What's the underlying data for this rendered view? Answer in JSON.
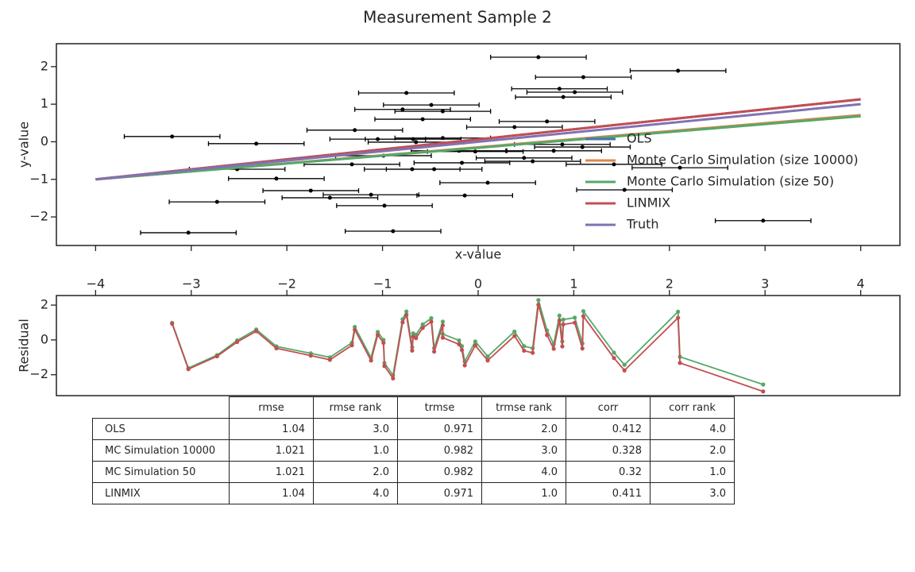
{
  "chart_data": [
    {
      "type": "errorbar",
      "title": "Measurement Sample 2",
      "xlabel": "x-value",
      "ylabel": "y-value",
      "xlim": [
        -4.41,
        4.41
      ],
      "ylim": [
        -2.76,
        2.61
      ],
      "yticks": [
        {
          "value": -2,
          "label": "−2"
        },
        {
          "value": -1,
          "label": "−1"
        },
        0,
        1,
        2
      ],
      "legend": "lower right",
      "points": {
        "color": "#000000",
        "xerr": 0.5,
        "x": [
          -3.2,
          -3.03,
          -2.73,
          -2.52,
          -2.32,
          -2.11,
          -1.75,
          -1.55,
          -1.32,
          -1.29,
          -1.12,
          -1.05,
          -0.99,
          -0.98,
          -0.89,
          -0.79,
          -0.75,
          -0.69,
          -0.68,
          -0.65,
          -0.58,
          -0.49,
          -0.46,
          -0.37,
          -0.37,
          -0.2,
          -0.17,
          -0.14,
          -0.03,
          0.1,
          0.38,
          0.48,
          0.57,
          0.63,
          0.72,
          0.79,
          0.85,
          0.88,
          0.89,
          1.01,
          1.09,
          1.1,
          1.42,
          1.53,
          2.09,
          2.11,
          2.98
        ],
        "values": [
          0.14,
          -2.42,
          -1.6,
          -0.73,
          -0.05,
          -0.98,
          -1.3,
          -1.49,
          -0.6,
          0.31,
          -1.41,
          0.07,
          -0.37,
          -1.7,
          -2.38,
          0.86,
          1.3,
          -0.73,
          0.07,
          -0.01,
          0.6,
          0.98,
          -0.73,
          0.81,
          0.1,
          -0.24,
          -0.56,
          -1.43,
          -0.26,
          -1.09,
          0.39,
          -0.43,
          -0.52,
          2.25,
          0.54,
          -0.24,
          1.41,
          -0.07,
          1.19,
          1.32,
          -0.14,
          1.72,
          -0.6,
          -1.28,
          1.89,
          -0.69,
          -2.1
        ]
      },
      "series": [
        {
          "name": "OLS",
          "color": "#4c72b0",
          "x": [
            -4,
            4
          ],
          "values": [
            -1.0,
            1.13
          ]
        },
        {
          "name": "Monte Carlo Simulation (size 10000)",
          "color": "#dd8452",
          "x": [
            -4,
            4
          ],
          "values": [
            -1.0,
            0.71
          ]
        },
        {
          "name": "Monte Carlo Simulation (size 50)",
          "color": "#55a868",
          "x": [
            -4,
            4
          ],
          "values": [
            -1.0,
            0.68
          ]
        },
        {
          "name": "LINMIX",
          "color": "#c44e52",
          "x": [
            -4,
            4
          ],
          "values": [
            -1.0,
            1.13
          ]
        },
        {
          "name": "Truth",
          "color": "#8172b3",
          "x": [
            -4,
            4
          ],
          "values": [
            -1.0,
            1.0
          ]
        }
      ]
    },
    {
      "type": "line",
      "ylabel": "Residual",
      "xaxis_position": "top",
      "xlim": [
        -4.41,
        4.41
      ],
      "ylim": [
        -3.2,
        2.55
      ],
      "xticks": [
        {
          "value": -4,
          "label": "−4"
        },
        {
          "value": -3,
          "label": "−3"
        },
        {
          "value": -2,
          "label": "−2"
        },
        {
          "value": -1,
          "label": "−1"
        },
        0,
        1,
        2,
        3,
        4
      ],
      "yticks": [
        {
          "value": -2,
          "label": "−2"
        },
        0,
        2
      ],
      "x": [
        -3.2,
        -3.03,
        -2.73,
        -2.52,
        -2.32,
        -2.11,
        -1.75,
        -1.55,
        -1.32,
        -1.29,
        -1.12,
        -1.05,
        -0.99,
        -0.98,
        -0.89,
        -0.79,
        -0.75,
        -0.69,
        -0.68,
        -0.65,
        -0.58,
        -0.49,
        -0.46,
        -0.37,
        -0.37,
        -0.2,
        -0.17,
        -0.14,
        -0.03,
        0.1,
        0.38,
        0.48,
        0.57,
        0.63,
        0.72,
        0.79,
        0.85,
        0.88,
        0.89,
        1.01,
        1.09,
        1.1,
        1.42,
        1.53,
        2.09,
        2.11,
        2.98
      ],
      "series": [
        {
          "color": "#55a868",
          "values": [
            0.98,
            -1.62,
            -0.87,
            -0.03,
            0.6,
            -0.37,
            -0.77,
            -1.0,
            -0.16,
            0.75,
            -1.02,
            0.46,
            0.0,
            -1.33,
            -2.03,
            1.19,
            1.63,
            -0.42,
            0.38,
            0.29,
            0.89,
            1.25,
            -0.47,
            1.05,
            0.34,
            -0.03,
            -0.36,
            -1.24,
            -0.09,
            -0.95,
            0.48,
            -0.36,
            -0.48,
            2.29,
            0.55,
            -0.24,
            1.4,
            -0.09,
            1.17,
            1.28,
            -0.2,
            1.65,
            -0.73,
            -1.43,
            1.62,
            -0.97,
            -2.56
          ]
        },
        {
          "color": "#c44e52",
          "values": [
            0.93,
            -1.68,
            -0.94,
            -0.12,
            0.5,
            -0.48,
            -0.9,
            -1.14,
            -0.31,
            0.59,
            -1.18,
            0.29,
            -0.17,
            -1.5,
            -2.21,
            1.01,
            1.44,
            -0.61,
            0.19,
            0.1,
            0.69,
            1.05,
            -0.67,
            0.84,
            0.13,
            -0.25,
            -0.58,
            -1.46,
            -0.32,
            -1.18,
            0.23,
            -0.62,
            -0.74,
            2.02,
            0.28,
            -0.51,
            1.12,
            -0.37,
            0.89,
            0.99,
            -0.49,
            1.36,
            -1.04,
            -1.75,
            1.27,
            -1.32,
            -2.96
          ]
        }
      ]
    }
  ],
  "table": {
    "columns": [
      "rmse",
      "rmse rank",
      "trmse",
      "trmse rank",
      "corr",
      "corr rank"
    ],
    "rows": [
      [
        "OLS",
        "1.04",
        "3.0",
        "0.971",
        "2.0",
        "0.412",
        "4.0"
      ],
      [
        "MC Simulation 10000",
        "1.021",
        "1.0",
        "0.982",
        "3.0",
        "0.328",
        "2.0"
      ],
      [
        "MC Simulation 50",
        "1.021",
        "2.0",
        "0.982",
        "4.0",
        "0.32",
        "1.0"
      ],
      [
        "LINMIX",
        "1.04",
        "4.0",
        "0.971",
        "1.0",
        "0.411",
        "3.0"
      ]
    ]
  }
}
